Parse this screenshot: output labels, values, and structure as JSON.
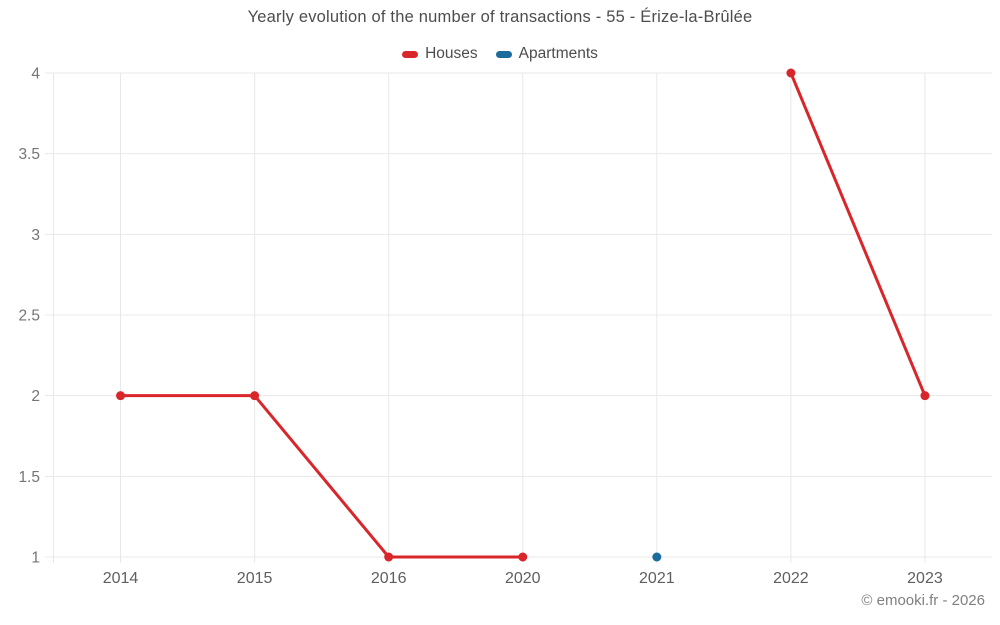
{
  "chart_data": {
    "type": "line",
    "title": "Yearly evolution of the number of transactions - 55 - Érize-la-Brûlée",
    "categories": [
      "2014",
      "2015",
      "2016",
      "2020",
      "2021",
      "2022",
      "2023"
    ],
    "series": [
      {
        "name": "Houses",
        "color": "#d9262b",
        "values": [
          2,
          2,
          1,
          1,
          null,
          4,
          2
        ]
      },
      {
        "name": "Apartments",
        "color": "#1b6c9c",
        "values": [
          null,
          null,
          null,
          null,
          1,
          null,
          null
        ]
      }
    ],
    "ylim": [
      1,
      4
    ],
    "yticks": [
      1,
      1.5,
      2,
      2.5,
      3,
      3.5,
      4
    ],
    "grid": true,
    "legend_position": "top",
    "xlabel": "",
    "ylabel": "",
    "grid_color": "#e8e8e8",
    "ytick_label_color": "#757575",
    "xtick_label_color": "#5f5f5f"
  },
  "footer": {
    "text": "© emooki.fr - 2026"
  }
}
